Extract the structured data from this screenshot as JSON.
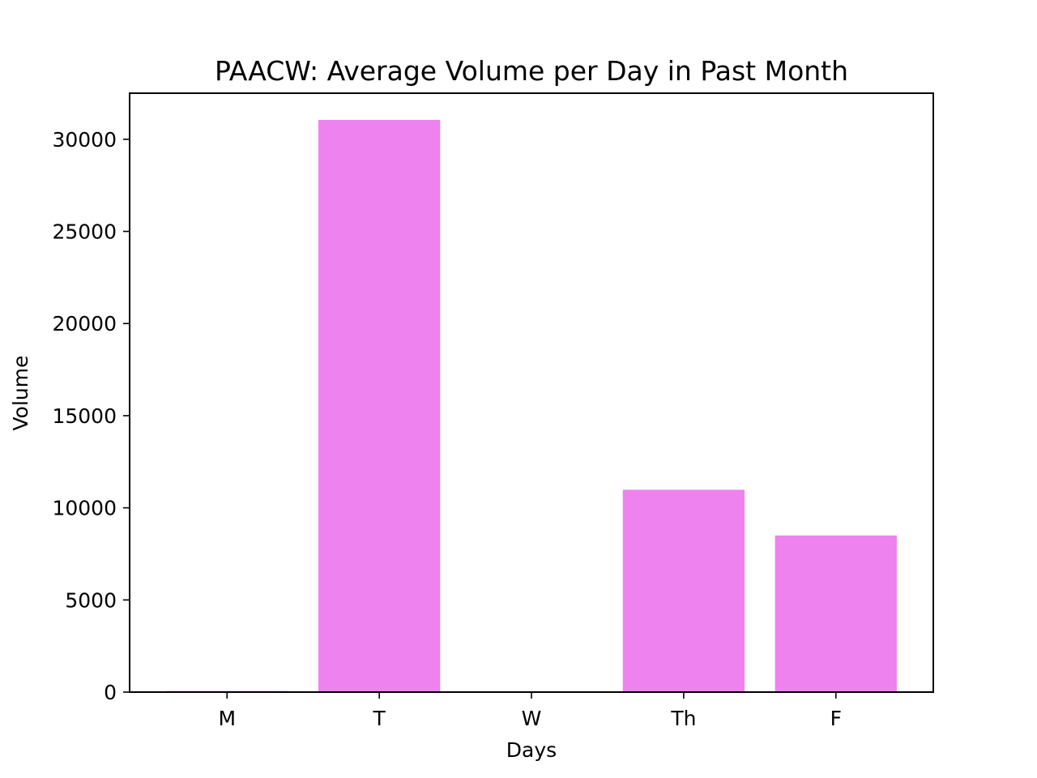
{
  "chart_data": {
    "type": "bar",
    "title": "PAACW: Average Volume per Day in Past Month",
    "xlabel": "Days",
    "ylabel": "Volume",
    "categories": [
      "M",
      "T",
      "W",
      "Th",
      "F"
    ],
    "values": [
      60,
      31050,
      0,
      10980,
      8500
    ],
    "ylim": [
      0,
      32500
    ],
    "yticks": [
      0,
      5000,
      10000,
      15000,
      20000,
      25000,
      30000
    ],
    "ytick_labels": [
      "0",
      "5000",
      "10000",
      "15000",
      "20000",
      "25000",
      "30000"
    ],
    "bar_color": "#EE82EE",
    "grid": false,
    "legend": "none"
  }
}
